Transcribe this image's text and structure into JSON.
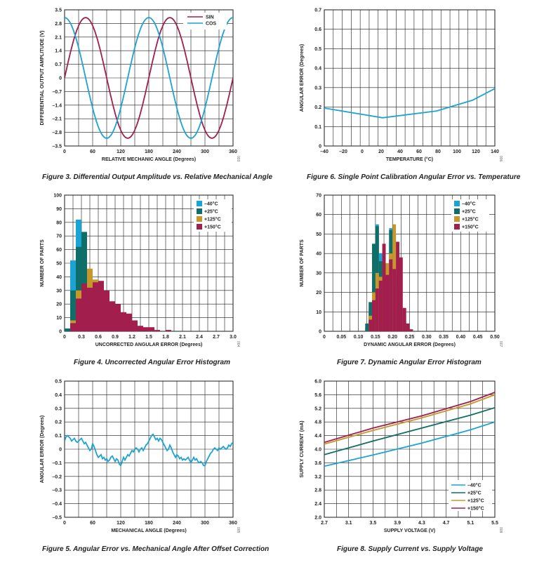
{
  "colors": {
    "sin": "#a21e4d",
    "cos": "#1ba3d3",
    "m40": "#1ba3d3",
    "p25": "#0f6e67",
    "p125": "#c8972b",
    "p150": "#a21e4d",
    "grid": "#1a1a1a"
  },
  "chart_data": [
    {
      "id": "fig3",
      "type": "line",
      "caption": "Figure 3. Differential Output Amplitude vs. Relative Mechanical Angle",
      "xlabel": "RELATIVE MECHANIC ANGLE (Degrees)",
      "ylabel": "DIFFERENTIAL OUTPUT AMPLITUDE (V)",
      "code": "003",
      "xlim": [
        0,
        360
      ],
      "ylim": [
        -3.5,
        3.5
      ],
      "xticks": [
        "0",
        "60",
        "120",
        "180",
        "240",
        "300",
        "360"
      ],
      "yticks": [
        "3.5",
        "2.8",
        "2.1",
        "1.4",
        "0.7",
        "0",
        "–0.7",
        "–1.4",
        "–2.1",
        "–2.8",
        "–3.5"
      ],
      "legend": [
        "SIN",
        "COS"
      ],
      "series": [
        {
          "name": "SIN",
          "x": [
            0,
            15,
            30,
            45,
            60,
            75,
            90,
            105,
            120,
            135,
            150,
            165,
            180,
            195,
            210,
            225,
            240,
            255,
            270,
            285,
            300,
            315,
            330,
            345,
            360
          ],
          "y": [
            0,
            1.55,
            2.68,
            3.1,
            2.68,
            1.55,
            0,
            -1.55,
            -2.68,
            -3.1,
            -2.68,
            -1.55,
            0,
            1.55,
            2.68,
            3.1,
            2.68,
            1.55,
            0,
            -1.55,
            -2.68,
            -3.1,
            -2.68,
            -1.55,
            0
          ]
        },
        {
          "name": "COS",
          "x": [
            0,
            15,
            30,
            45,
            60,
            75,
            90,
            105,
            120,
            135,
            150,
            165,
            180,
            195,
            210,
            225,
            240,
            255,
            270,
            285,
            300,
            315,
            330,
            345,
            360
          ],
          "y": [
            3.1,
            2.68,
            1.55,
            0,
            -1.55,
            -2.68,
            -3.1,
            -2.68,
            -1.55,
            0,
            1.55,
            2.68,
            3.1,
            2.68,
            1.55,
            0,
            -1.55,
            -2.68,
            -3.1,
            -2.68,
            -1.55,
            0,
            1.55,
            2.68,
            3.1
          ]
        }
      ]
    },
    {
      "id": "fig6",
      "type": "line",
      "caption": "Figure 6. Single Point Calibration Angular Error vs. Temperature",
      "xlabel": "TEMPERATURE (°C)",
      "ylabel": "ANGULAR ERROR (Degrees)",
      "code": "006",
      "xlim": [
        -40,
        150
      ],
      "ylim": [
        0,
        0.7
      ],
      "xticks": [
        "–40",
        "–20",
        "0",
        "20",
        "40",
        "60",
        "80",
        "100",
        "120",
        "140"
      ],
      "yticks": [
        "0.7",
        "0.6",
        "0.5",
        "0.4",
        "0.3",
        "0.2",
        "0.1",
        "0"
      ],
      "series": [
        {
          "name": "error",
          "x": [
            -40,
            25,
            85,
            125,
            150
          ],
          "y": [
            0.195,
            0.145,
            0.18,
            0.235,
            0.295
          ]
        }
      ]
    },
    {
      "id": "fig4",
      "type": "bar",
      "caption": "Figure 4. Uncorrected Angular Error Histogram",
      "xlabel": "UNCORRECTED ANGULAR ERROR (Degrees)",
      "ylabel": "NUMBER OF PARTS",
      "code": "004",
      "xlim": [
        0,
        3.0
      ],
      "ylim": [
        0,
        100
      ],
      "xticks": [
        "0",
        "0.3",
        "0.6",
        "0.9",
        "1.2",
        "1.5",
        "1.8",
        "2.1",
        "2.4",
        "2.7",
        "3.0"
      ],
      "yticks": [
        "100",
        "90",
        "80",
        "70",
        "60",
        "50",
        "40",
        "30",
        "20",
        "10",
        "0"
      ],
      "legend": [
        "–40°C",
        "+25°C",
        "+125°C",
        "+150°C"
      ],
      "bin_width": 0.1,
      "bins": [
        0.0,
        0.1,
        0.2,
        0.3,
        0.4,
        0.5,
        0.6,
        0.7,
        0.8,
        0.9,
        1.0,
        1.1,
        1.2,
        1.3,
        1.4,
        1.5,
        1.6,
        1.7,
        1.8,
        1.9,
        2.0
      ],
      "series": [
        {
          "name": "–40°C",
          "values": [
            2,
            52,
            82,
            57,
            32,
            20,
            16,
            9,
            5,
            3,
            2,
            1,
            0,
            0,
            0,
            0,
            0,
            0,
            0,
            0,
            0
          ]
        },
        {
          "name": "+25°C",
          "values": [
            2,
            30,
            62,
            73,
            40,
            25,
            18,
            12,
            7,
            5,
            3,
            2,
            1,
            0,
            0,
            0,
            0,
            0,
            0,
            0,
            0
          ]
        },
        {
          "name": "+125°C",
          "values": [
            0,
            8,
            30,
            34,
            46,
            38,
            35,
            25,
            20,
            16,
            12,
            8,
            5,
            3,
            2,
            1,
            0,
            0,
            0,
            0,
            0
          ]
        },
        {
          "name": "+150°C",
          "values": [
            0,
            6,
            24,
            35,
            32,
            36,
            37,
            30,
            22,
            20,
            14,
            13,
            8,
            4,
            3,
            3,
            1,
            0,
            1,
            0,
            0
          ]
        }
      ]
    },
    {
      "id": "fig7",
      "type": "bar",
      "caption": "Figure 7. Dynamic Angular Error Histogram",
      "xlabel": "DYNAMIC ANGULAR ERROR (Degrees)",
      "ylabel": "NUMBER OF PARTS",
      "code": "007",
      "xlim": [
        0,
        0.5
      ],
      "ylim": [
        0,
        70
      ],
      "xticks": [
        "0",
        "0.05",
        "0.10",
        "0.15",
        "0.20",
        "0.25",
        "0.30",
        "0.35",
        "0.40",
        "0.45",
        "0.50"
      ],
      "yticks": [
        "70",
        "60",
        "50",
        "40",
        "30",
        "20",
        "10",
        "0"
      ],
      "legend": [
        "–40°C",
        "+25°C",
        "+125°C",
        "+150°C"
      ],
      "bin_width": 0.01,
      "bins": [
        0.12,
        0.13,
        0.14,
        0.15,
        0.16,
        0.17,
        0.18,
        0.19,
        0.2,
        0.21,
        0.22,
        0.23,
        0.24,
        0.25
      ],
      "series": [
        {
          "name": "–40°C",
          "values": [
            2,
            10,
            38,
            55,
            40,
            24,
            35,
            53,
            50,
            18,
            8,
            4,
            1,
            0
          ]
        },
        {
          "name": "+25°C",
          "values": [
            4,
            15,
            45,
            54,
            36,
            33,
            30,
            52,
            45,
            22,
            9,
            4,
            1,
            0
          ]
        },
        {
          "name": "+125°C",
          "values": [
            0,
            8,
            20,
            30,
            28,
            40,
            35,
            40,
            55,
            30,
            12,
            5,
            2,
            0
          ]
        },
        {
          "name": "+150°C",
          "values": [
            0,
            6,
            16,
            22,
            26,
            45,
            29,
            37,
            32,
            46,
            38,
            12,
            4,
            1
          ]
        }
      ]
    },
    {
      "id": "fig5",
      "type": "line",
      "caption": "Figure 5. Angular Error vs. Mechanical Angle After Offset Correction",
      "xlabel": "MECHANICAL ANGLE (Degrees)",
      "ylabel": "ANGULAR ERROR (Degrees)",
      "code": "005",
      "xlim": [
        0,
        360
      ],
      "ylim": [
        -0.5,
        0.5
      ],
      "xticks": [
        "0",
        "60",
        "120",
        "180",
        "240",
        "300",
        "360"
      ],
      "yticks": [
        "0.5",
        "0.4",
        "0.3",
        "0.2",
        "0.1",
        "0",
        "–0.1",
        "–0.2",
        "–0.3",
        "–0.4",
        "–0.5"
      ],
      "series": [
        {
          "name": "error",
          "x": [
            0,
            3,
            6,
            9,
            12,
            15,
            18,
            21,
            24,
            27,
            30,
            33,
            36,
            39,
            42,
            45,
            48,
            51,
            54,
            57,
            60,
            63,
            66,
            69,
            72,
            75,
            78,
            81,
            84,
            87,
            90,
            93,
            96,
            99,
            102,
            105,
            108,
            111,
            114,
            117,
            120,
            123,
            126,
            129,
            132,
            135,
            138,
            141,
            144,
            147,
            150,
            153,
            156,
            159,
            162,
            165,
            168,
            171,
            174,
            177,
            180,
            183,
            186,
            189,
            192,
            195,
            198,
            201,
            204,
            207,
            210,
            213,
            216,
            219,
            222,
            225,
            228,
            231,
            234,
            237,
            240,
            243,
            246,
            249,
            252,
            255,
            258,
            261,
            264,
            267,
            270,
            273,
            276,
            279,
            282,
            285,
            288,
            291,
            294,
            297,
            300,
            303,
            306,
            309,
            312,
            315,
            318,
            321,
            324,
            327,
            330,
            333,
            336,
            339,
            342,
            345,
            348,
            351,
            354,
            357,
            360
          ],
          "y": [
            0.06,
            0.09,
            0.1,
            0.09,
            0.08,
            0.06,
            0.07,
            0.08,
            0.06,
            0.05,
            0.06,
            0.07,
            0.08,
            0.06,
            0.04,
            0.05,
            0.03,
            0.01,
            -0.01,
            0,
            0.04,
            0.02,
            -0.01,
            -0.04,
            -0.06,
            -0.05,
            -0.04,
            -0.07,
            -0.06,
            -0.08,
            -0.07,
            -0.09,
            -0.08,
            -0.06,
            -0.05,
            -0.07,
            -0.09,
            -0.07,
            -0.08,
            -0.11,
            -0.12,
            -0.09,
            -0.06,
            -0.08,
            -0.06,
            -0.04,
            -0.05,
            -0.03,
            -0.01,
            -0.02,
            0,
            0.01,
            0,
            -0.02,
            0,
            0.01,
            -0.01,
            0.01,
            0.03,
            0.04,
            0.06,
            0.08,
            0.1,
            0.11,
            0.09,
            0.07,
            0.08,
            0.06,
            0.08,
            0.07,
            0.05,
            0.03,
            0.01,
            -0.01,
            0,
            0.03,
            0.01,
            -0.02,
            -0.04,
            -0.06,
            -0.04,
            -0.05,
            -0.07,
            -0.06,
            -0.08,
            -0.07,
            -0.08,
            -0.07,
            -0.06,
            -0.08,
            -0.1,
            -0.08,
            -0.06,
            -0.08,
            -0.07,
            -0.09,
            -0.1,
            -0.09,
            -0.1,
            -0.12,
            -0.12,
            -0.09,
            -0.07,
            -0.05,
            -0.03,
            -0.02,
            0,
            0.01,
            0,
            -0.01,
            0.01,
            0,
            0.01,
            0.02,
            0.01,
            0,
            0.01,
            0.03,
            0.02,
            0.04,
            0.05
          ]
        }
      ]
    },
    {
      "id": "fig8",
      "type": "line",
      "caption": "Figure 8. Supply Current vs. Supply Voltage",
      "xlabel": "SUPPLY VOLTAGE (V)",
      "ylabel": "SUPPLY CURRENT (mA)",
      "code": "008",
      "xlim": [
        2.7,
        5.5
      ],
      "ylim": [
        2.0,
        6.0
      ],
      "xticks": [
        "2.7",
        "3.1",
        "3.5",
        "3.9",
        "4.3",
        "4.7",
        "5.1",
        "5.5"
      ],
      "yticks": [
        "6.0",
        "5.6",
        "5.2",
        "4.8",
        "4.4",
        "4.0",
        "3.6",
        "3.2",
        "2.8",
        "2.4",
        "2.0"
      ],
      "legend": [
        "–40°C",
        "+25°C",
        "+125°C",
        "+150°C"
      ],
      "series": [
        {
          "name": "–40°C",
          "x": [
            2.7,
            3.5,
            4.3,
            5.1,
            5.5
          ],
          "y": [
            3.5,
            3.83,
            4.18,
            4.57,
            4.8
          ]
        },
        {
          "name": "+25°C",
          "x": [
            2.7,
            3.5,
            4.3,
            5.1,
            5.5
          ],
          "y": [
            3.84,
            4.24,
            4.62,
            5.0,
            5.22
          ]
        },
        {
          "name": "+125°C",
          "x": [
            2.7,
            3.5,
            4.3,
            5.1,
            5.5
          ],
          "y": [
            4.15,
            4.55,
            4.92,
            5.33,
            5.6
          ]
        },
        {
          "name": "+150°C",
          "x": [
            2.7,
            3.5,
            4.3,
            5.1,
            5.5
          ],
          "y": [
            4.2,
            4.62,
            4.98,
            5.4,
            5.67
          ]
        }
      ]
    }
  ]
}
